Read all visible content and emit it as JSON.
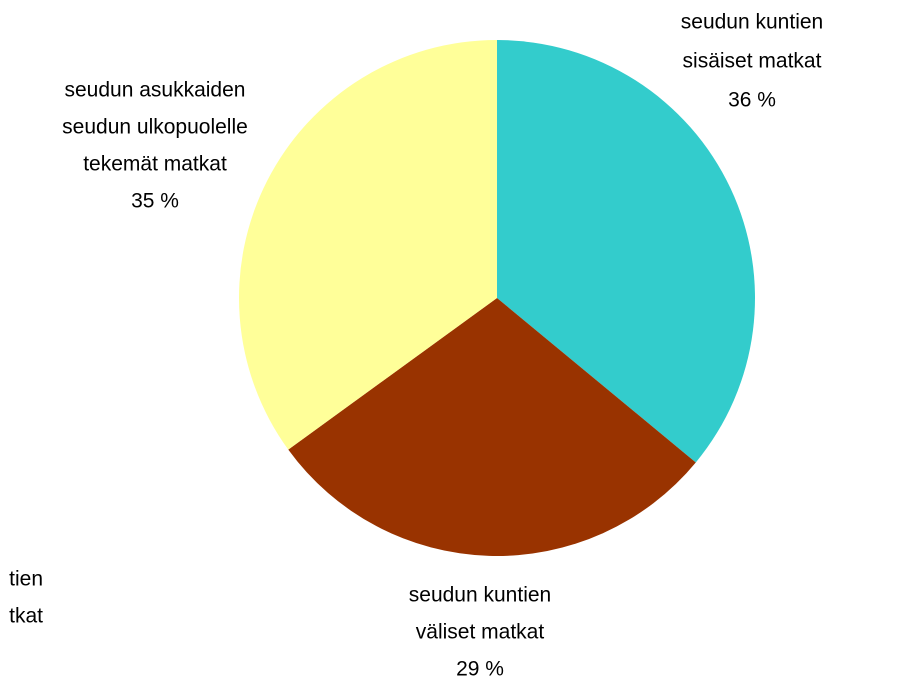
{
  "chart_data": {
    "type": "pie",
    "categories": [
      [
        "seudun kuntien",
        "sisäiset matkat"
      ],
      [
        "seudun kuntien",
        "väliset matkat"
      ],
      [
        "seudun asukkaiden",
        "seudun ulkopuolelle",
        "tekemät matkat"
      ]
    ],
    "values": [
      36,
      29,
      35
    ],
    "value_labels": [
      "36 %",
      "29 %",
      "35 %"
    ],
    "colors": [
      "#33CCCC",
      "#993300",
      "#FFFF99"
    ],
    "annotations": [
      "tien",
      "tkat"
    ]
  }
}
